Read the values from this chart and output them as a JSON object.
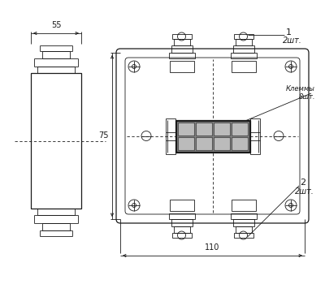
{
  "background_color": "#ffffff",
  "line_color": "#1a1a1a",
  "thin_lw": 0.6,
  "med_lw": 0.9,
  "thick_lw": 1.4,
  "label1": "1",
  "label2": "2",
  "label1_qty": "2шт.",
  "label2_qty": "2шт.",
  "label_klemy": "Клеммы",
  "label_klemy2": "8шт.",
  "dim_55": "55",
  "dim_75": "75",
  "dim_110": "110"
}
